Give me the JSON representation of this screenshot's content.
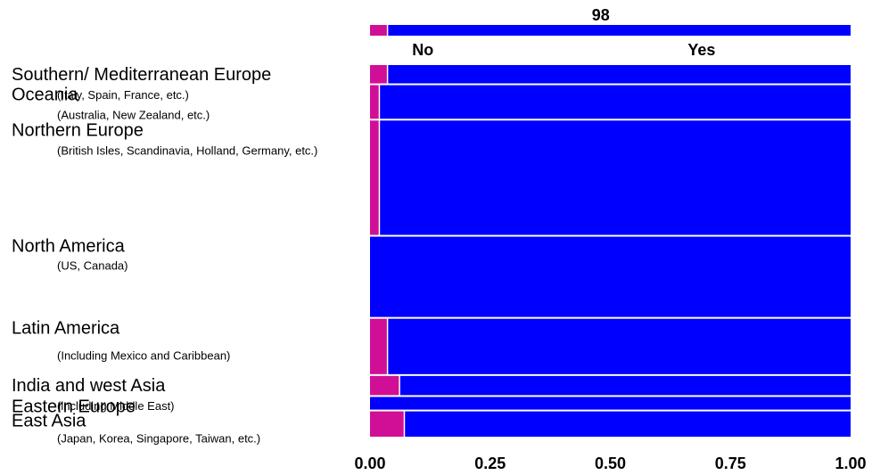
{
  "chart_data": {
    "type": "bar",
    "subtype": "mosaic-stacked-proportion",
    "orientation": "horizontal",
    "top_label": "98",
    "column_labels": [
      "No",
      "Yes"
    ],
    "categories": [
      {
        "name": "Southern/ Mediterranean Europe",
        "sub": "(Italy, Spain, France, etc.)",
        "share": 0.042,
        "no": 0.035,
        "yes": 0.965
      },
      {
        "name": "Oceania",
        "sub": "(Australia, New Zealand, etc.)",
        "share": 0.077,
        "no": 0.018,
        "yes": 0.982
      },
      {
        "name": "Northern Europe",
        "sub": "(British Isles, Scandinavia, Holland, Germany, etc.)",
        "share": 0.262,
        "no": 0.018,
        "yes": 0.982
      },
      {
        "name": "North America",
        "sub": "(US, Canada)",
        "share": 0.184,
        "no": 0.0,
        "yes": 1.0
      },
      {
        "name": "Latin America",
        "sub": "(Including Mexico and Caribbean)",
        "share": 0.127,
        "no": 0.035,
        "yes": 0.965
      },
      {
        "name": "India and west Asia",
        "sub": "(including Middle East)",
        "share": 0.044,
        "no": 0.06,
        "yes": 0.94
      },
      {
        "name": "Eastern Europe",
        "sub": "",
        "share": 0.029,
        "no": 0.0,
        "yes": 1.0
      },
      {
        "name": "East Asia",
        "sub": "(Japan, Korea, Singapore, Taiwan, etc.)",
        "share": 0.058,
        "no": 0.07,
        "yes": 0.93
      }
    ],
    "summary_bar": {
      "no": 0.035,
      "yes": 0.965
    },
    "x_ticks": [
      "0.00",
      "0.25",
      "0.50",
      "0.75",
      "1.00"
    ],
    "xlim": [
      0,
      1
    ],
    "colors": {
      "no": "#d10f96",
      "yes": "#0000ff"
    },
    "grid": false,
    "legend": "none"
  }
}
